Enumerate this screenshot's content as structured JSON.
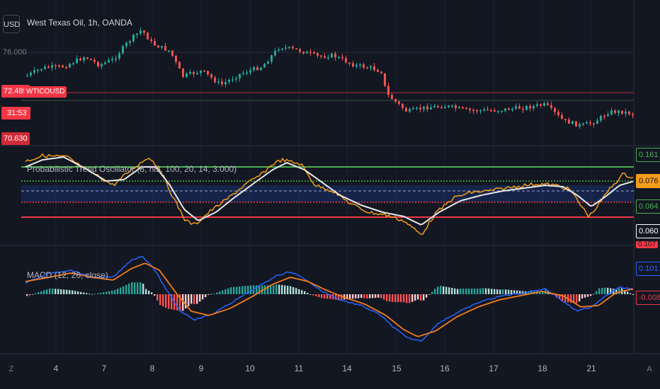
{
  "toolbar": {
    "currency_button": "USD"
  },
  "header": {
    "symbol_title": "West Texas Oil, 1h, OANDA"
  },
  "price_pane": {
    "price_label_top": "76.000",
    "price_label_bottom": "70.630",
    "last_price": "72.489",
    "symbol_tag": "WTICOUSD",
    "countdown": "31:53",
    "colors": {
      "up": "#26a69a",
      "down": "#ef5350",
      "badge": "#f23645"
    }
  },
  "oscillator_pane": {
    "title": "Probabilistic Trend Oscillator (8, hl2, 100, 20, 14, 3.000)",
    "badges": [
      {
        "value": "0.161",
        "color": "#4caf50"
      },
      {
        "value": "0.076",
        "color": "#f59d1a"
      },
      {
        "value": "0.064",
        "color": "#4caf50"
      },
      {
        "value": "0.060",
        "color": "#ffffff"
      }
    ]
  },
  "macd_pane": {
    "title": "MACD (12, 26, close)",
    "badges": [
      {
        "value": "0.107",
        "color": "#f23645"
      },
      {
        "value": "0.101",
        "color": "#2962ff"
      },
      {
        "value": "-0.008",
        "color": "#f23645"
      }
    ]
  },
  "time_axis": {
    "labels": [
      "4",
      "7",
      "8",
      "9",
      "10",
      "11",
      "14",
      "15",
      "16",
      "17",
      "18",
      "21"
    ],
    "left_nav": "Z",
    "right_nav": "A"
  }
}
